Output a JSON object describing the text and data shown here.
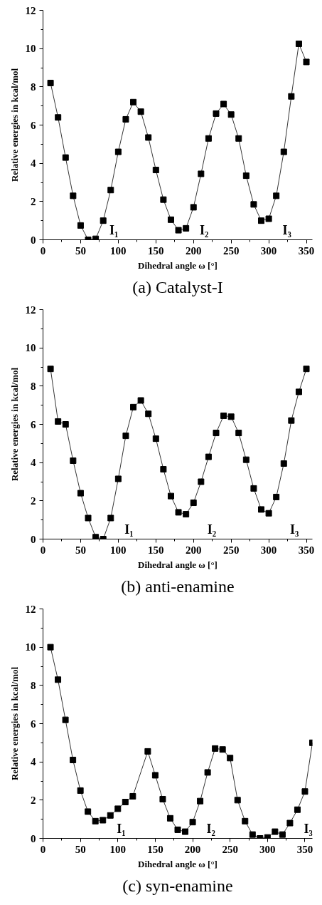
{
  "chart_data": [
    {
      "type": "line",
      "title": "(a) Catalyst-I",
      "xlabel": "Dihedral angle ω [°]",
      "ylabel": "Relative energies in kcal/mol",
      "marker": "square",
      "line_style": "solid",
      "grid": false,
      "xlim": [
        0,
        358
      ],
      "ylim": [
        0,
        12
      ],
      "xticks": [
        0,
        50,
        100,
        150,
        200,
        250,
        300,
        350
      ],
      "yticks": [
        0,
        2,
        4,
        6,
        8,
        10,
        12
      ],
      "series": [
        {
          "color": "#000000",
          "x": [
            10,
            20,
            30,
            40,
            50,
            60,
            70,
            80,
            90,
            100,
            110,
            120,
            130,
            140,
            150,
            160,
            170,
            180,
            190,
            200,
            210,
            220,
            230,
            240,
            250,
            260,
            270,
            280,
            290,
            300,
            310,
            320,
            330,
            340,
            350
          ],
          "values": [
            8.2,
            6.4,
            4.3,
            2.3,
            0.75,
            0.0,
            0.05,
            1.0,
            2.6,
            4.6,
            6.3,
            7.2,
            6.7,
            5.35,
            3.65,
            2.1,
            1.05,
            0.5,
            0.6,
            1.7,
            3.45,
            5.3,
            6.6,
            7.1,
            6.55,
            5.3,
            3.35,
            1.85,
            1.0,
            1.1,
            2.3,
            4.6,
            7.5,
            10.25,
            9.3
          ]
        }
      ],
      "annotations": [
        "I₁",
        "I₂",
        "I₃"
      ]
    },
    {
      "type": "line",
      "title": "(b) anti-enamine",
      "xlabel": "Dihedral angle ω [°]",
      "ylabel": "Relative energies in kcal/mol",
      "marker": "square",
      "line_style": "solid",
      "grid": false,
      "xlim": [
        0,
        358
      ],
      "ylim": [
        0,
        12
      ],
      "xticks": [
        0,
        50,
        100,
        150,
        200,
        250,
        300,
        350
      ],
      "yticks": [
        0,
        2,
        4,
        6,
        8,
        10,
        12
      ],
      "series": [
        {
          "color": "#000000",
          "x": [
            10,
            20,
            30,
            40,
            50,
            60,
            70,
            80,
            90,
            100,
            110,
            120,
            130,
            140,
            150,
            160,
            170,
            180,
            190,
            200,
            210,
            220,
            230,
            240,
            250,
            260,
            270,
            280,
            290,
            300,
            310,
            320,
            330,
            340,
            350
          ],
          "values": [
            8.9,
            6.15,
            6.0,
            4.1,
            2.4,
            1.1,
            0.1,
            0.0,
            1.1,
            3.15,
            5.4,
            6.9,
            7.25,
            6.55,
            5.25,
            3.65,
            2.25,
            1.4,
            1.3,
            1.9,
            3.0,
            4.3,
            5.55,
            6.45,
            6.4,
            5.55,
            4.15,
            2.65,
            1.55,
            1.35,
            2.2,
            3.95,
            6.2,
            7.7,
            8.9
          ]
        }
      ],
      "annotations": [
        "I₁",
        "I₂",
        "I₃"
      ]
    },
    {
      "type": "line",
      "title": "(c) syn-enamine",
      "xlabel": "Dihedral angle ω [°]",
      "ylabel": "Relative energies in kcal/mol",
      "marker": "square",
      "line_style": "solid",
      "grid": false,
      "xlim": [
        0,
        360
      ],
      "ylim": [
        0,
        12
      ],
      "xticks": [
        0,
        50,
        100,
        150,
        200,
        250,
        300,
        350
      ],
      "yticks": [
        0,
        2,
        4,
        6,
        8,
        10,
        12
      ],
      "series": [
        {
          "color": "#000000",
          "x": [
            10,
            20,
            30,
            40,
            50,
            60,
            70,
            80,
            90,
            100,
            110,
            120,
            140,
            150,
            160,
            170,
            180,
            190,
            200,
            210,
            220,
            230,
            240,
            250,
            260,
            270,
            280,
            290,
            300,
            310,
            320,
            330,
            340,
            350,
            360
          ],
          "values": [
            10.0,
            8.3,
            6.2,
            4.1,
            2.5,
            1.4,
            0.9,
            0.95,
            1.2,
            1.55,
            1.9,
            2.2,
            4.55,
            3.3,
            2.05,
            1.05,
            0.45,
            0.35,
            0.85,
            1.95,
            3.45,
            4.7,
            4.65,
            4.2,
            2.0,
            0.9,
            0.2,
            0.0,
            0.05,
            0.35,
            0.2,
            0.8,
            1.5,
            2.45,
            5.0
          ]
        }
      ],
      "annotations": [
        "I₁",
        "I₂",
        "I₃"
      ]
    }
  ]
}
